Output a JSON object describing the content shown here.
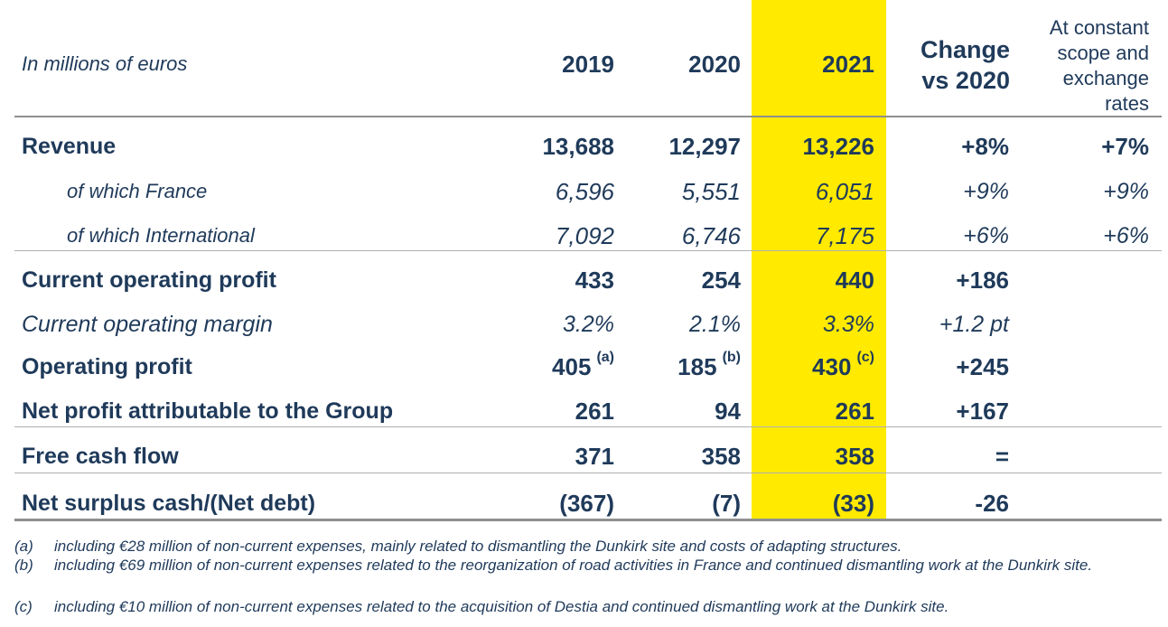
{
  "header": {
    "caption": "In millions of euros",
    "years": [
      "2019",
      "2020",
      "2021"
    ],
    "change_line1": "Change",
    "change_line2": "vs 2020",
    "constant_lines": [
      "At constant",
      "scope and",
      "exchange",
      "rates"
    ]
  },
  "rows": [
    {
      "label": "Revenue",
      "v2019": "13,688",
      "v2020": "12,297",
      "v2021": "13,226",
      "change": "+8%",
      "constant": "+7%"
    },
    {
      "label": "of which France",
      "v2019": "6,596",
      "v2020": "5,551",
      "v2021": "6,051",
      "change": "+9%",
      "constant": "+9%"
    },
    {
      "label": "of which International",
      "v2019": "7,092",
      "v2020": "6,746",
      "v2021": "7,175",
      "change": "+6%",
      "constant": "+6%"
    },
    {
      "label": "Current operating profit",
      "v2019": "433",
      "v2020": "254",
      "v2021": "440",
      "change": "+186",
      "constant": ""
    },
    {
      "label": "Current operating margin",
      "v2019": "3.2%",
      "v2020": "2.1%",
      "v2021": "3.3%",
      "change": "+1.2 pt",
      "constant": ""
    },
    {
      "label": "Operating profit",
      "v2019": "405",
      "v2020": "185",
      "v2021": "430",
      "change": "+245",
      "constant": "",
      "notes": {
        "v2019": "(a)",
        "v2020": "(b)",
        "v2021": "(c)"
      }
    },
    {
      "label": "Net profit attributable to the Group",
      "v2019": "261",
      "v2020": "94",
      "v2021": "261",
      "change": "+167",
      "constant": ""
    },
    {
      "label": "Free cash flow",
      "v2019": "371",
      "v2020": "358",
      "v2021": "358",
      "change": "=",
      "constant": ""
    },
    {
      "label": "Net surplus cash/(Net debt)",
      "v2019": "(367)",
      "v2020": "(7)",
      "v2021": "(33)",
      "change": "-26",
      "constant": ""
    }
  ],
  "footnotes": [
    {
      "key": "(a)",
      "text": "including €28 million of non-current expenses, mainly related to dismantling the Dunkirk site and costs of adapting structures."
    },
    {
      "key": "(b)",
      "text": "including €69 million of non-current expenses related to the reorganization of road activities in France and continued dismantling work at the Dunkirk site."
    },
    {
      "key": "(c)",
      "text": "including €10 million of non-current expenses related to the acquisition of Destia and continued dismantling work at the Dunkirk site."
    }
  ],
  "colors": {
    "highlight": "#ffea00",
    "text": "#1f3a5a",
    "rule": "#8f8f8f"
  }
}
